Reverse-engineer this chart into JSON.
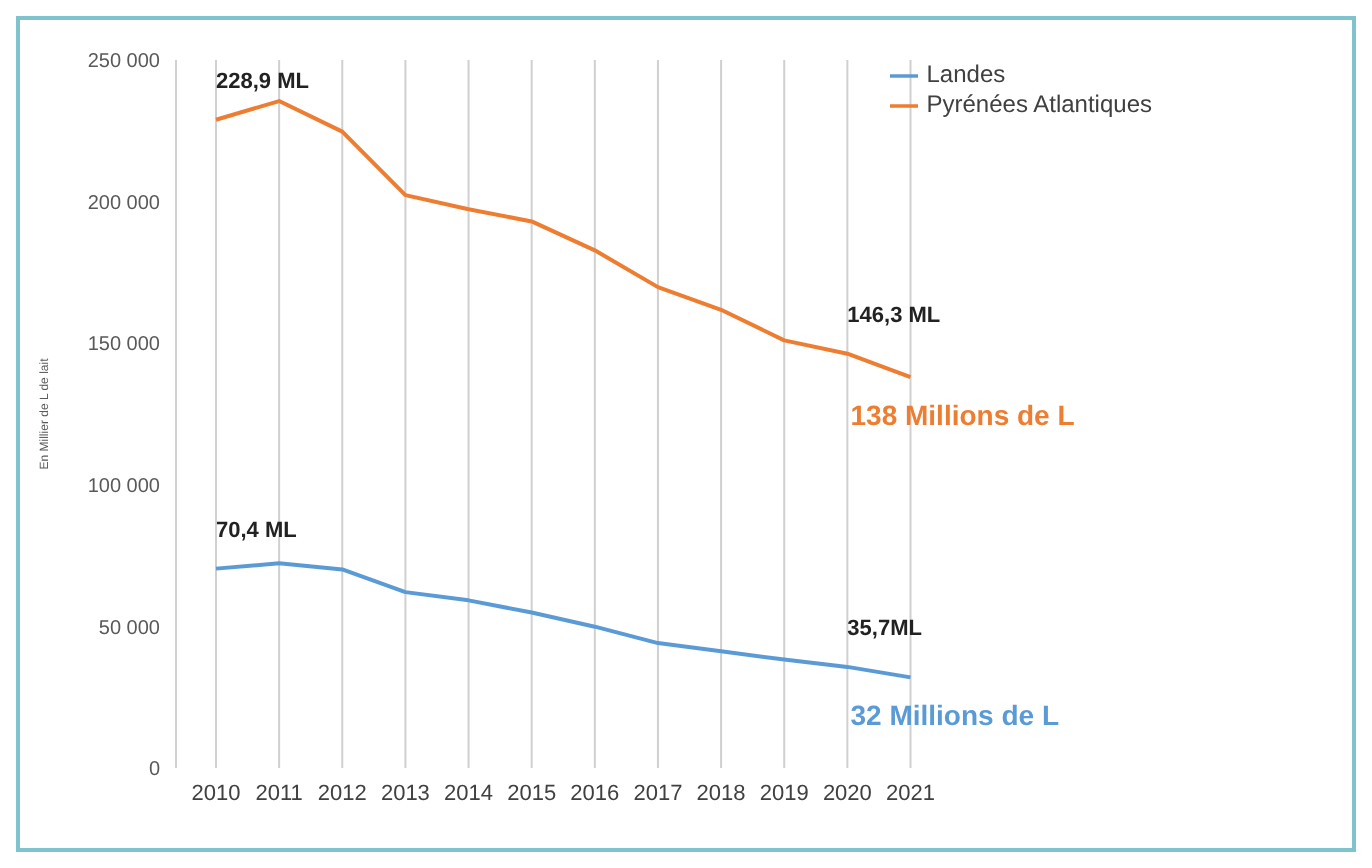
{
  "chart_data": {
    "type": "line",
    "ylabel": "En Millier de L de lait",
    "categories": [
      "2010",
      "2011",
      "2012",
      "2013",
      "2014",
      "2015",
      "2016",
      "2017",
      "2018",
      "2019",
      "2020",
      "2021"
    ],
    "series": [
      {
        "name": "Landes",
        "color": "#5b9bd5",
        "values": [
          70400,
          72300,
          70100,
          62100,
          59200,
          54900,
          49900,
          44100,
          41200,
          38300,
          35700,
          32000
        ]
      },
      {
        "name": "Pyrénées Atlantiques",
        "color": "#ed7d31",
        "values": [
          228900,
          235500,
          224700,
          202300,
          197300,
          193000,
          182800,
          169800,
          161800,
          151000,
          146300,
          138000
        ]
      }
    ],
    "ylim": [
      0,
      250000
    ],
    "yticks": [
      0,
      50000,
      100000,
      150000,
      200000,
      250000
    ],
    "grid": "x",
    "legend": "top right",
    "marker": "none",
    "line_style": "solid",
    "annotations": [
      {
        "text": "228,9 ML",
        "x": "2010",
        "y": 228900
      },
      {
        "text": "70,4 ML",
        "x": "2010",
        "y": 70400
      },
      {
        "text": "146,3 ML",
        "x": "2020",
        "y": 146300
      },
      {
        "text": "35,7ML",
        "x": "2020",
        "y": 35700
      },
      {
        "text": "138 Millions de L",
        "x": "2021",
        "y": 138000
      },
      {
        "text": "32 Millions de L",
        "x": "2021",
        "y": 32000
      }
    ]
  }
}
